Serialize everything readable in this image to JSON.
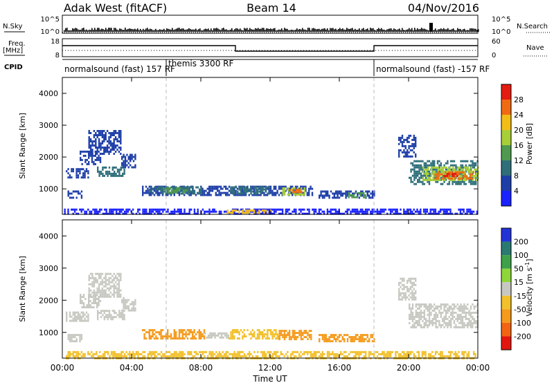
{
  "header": {
    "radar": "Adak West (fitACF)",
    "beam": "Beam 14",
    "date": "04/Nov/2016"
  },
  "summary_panel": {
    "left_labels": {
      "nsky": "N.Sky",
      "freq_top": "Freq.",
      "freq_unit": "[MHz]",
      "cpid": "CPID"
    },
    "right_labels": {
      "nsearch": "N.Search",
      "nave": "Nave"
    },
    "nsky_ticks": [
      "10^5",
      "10^0"
    ],
    "nsearch_ticks": [
      "10^5",
      "10^0"
    ],
    "freq_ticks": [
      18,
      8
    ],
    "nave_ticks": [
      60,
      0
    ],
    "freq_steps": [
      {
        "start_hour": 0,
        "end_hour": 10,
        "level": "high"
      },
      {
        "start_hour": 10,
        "end_hour": 18,
        "level": "low"
      },
      {
        "start_hour": 18,
        "end_hour": 24,
        "level": "high"
      }
    ],
    "cpid": [
      {
        "start_hour": 0,
        "label": "normalsound (fast) 157 RF"
      },
      {
        "start_hour": 6,
        "label": "themis 3300 RF"
      },
      {
        "start_hour": 18,
        "label": "normalsound (fast) -157 RF"
      }
    ]
  },
  "chart_data": [
    {
      "type": "heatmap",
      "parameter": "Power",
      "xlabel": "",
      "ylabel": "Slant Range [km]",
      "xlim_hours": [
        0,
        24
      ],
      "ylim": [
        200,
        4500
      ],
      "yticks": [
        1000,
        2000,
        3000,
        4000
      ],
      "colorbar": {
        "label": "Power [dB]",
        "ticks": [
          4,
          8,
          12,
          16,
          20,
          24,
          28
        ],
        "bins": [
          {
            "min": 0,
            "max": 4,
            "color": "#1a22ff"
          },
          {
            "min": 4,
            "max": 8,
            "color": "#1f3fa8"
          },
          {
            "min": 8,
            "max": 12,
            "color": "#2f6f7a"
          },
          {
            "min": 12,
            "max": 16,
            "color": "#4f9a50"
          },
          {
            "min": 16,
            "max": 20,
            "color": "#a8cf38"
          },
          {
            "min": 20,
            "max": 24,
            "color": "#f3bd18"
          },
          {
            "min": 24,
            "max": 28,
            "color": "#f06a12"
          },
          {
            "min": 28,
            "max": 32,
            "color": "#e41b10"
          }
        ]
      },
      "regions": [
        {
          "t0": 0.1,
          "t1": 24,
          "r0": 200,
          "r1": 380,
          "bin": 0
        },
        {
          "t0": 0.2,
          "t1": 1.5,
          "r0": 1380,
          "r1": 1650,
          "bin": 1
        },
        {
          "t0": 0.3,
          "t1": 1.1,
          "r0": 750,
          "r1": 950,
          "bin": 1
        },
        {
          "t0": 1.0,
          "t1": 2.2,
          "r0": 1800,
          "r1": 2200,
          "bin": 1
        },
        {
          "t0": 1.5,
          "t1": 3.4,
          "r0": 2100,
          "r1": 2850,
          "bin": 1
        },
        {
          "t0": 2.0,
          "t1": 3.6,
          "r0": 1380,
          "r1": 1700,
          "bin": 2
        },
        {
          "t0": 3.4,
          "t1": 4.2,
          "r0": 1700,
          "r1": 2100,
          "bin": 1
        },
        {
          "t0": 4.6,
          "t1": 14.4,
          "r0": 780,
          "r1": 1100,
          "bin": 1
        },
        {
          "t0": 5.0,
          "t1": 8.0,
          "r0": 820,
          "r1": 1080,
          "bin": 2
        },
        {
          "t0": 5.8,
          "t1": 7.2,
          "r0": 900,
          "r1": 1050,
          "bin": 3
        },
        {
          "t0": 9.7,
          "t1": 12.0,
          "r0": 820,
          "r1": 1080,
          "bin": 2
        },
        {
          "t0": 12.7,
          "t1": 14.0,
          "r0": 850,
          "r1": 1050,
          "bin": 4
        },
        {
          "t0": 13.0,
          "t1": 13.8,
          "r0": 900,
          "r1": 1000,
          "bin": 6
        },
        {
          "t0": 14.8,
          "t1": 18.0,
          "r0": 700,
          "r1": 950,
          "bin": 1
        },
        {
          "t0": 16.5,
          "t1": 17.5,
          "r0": 750,
          "r1": 900,
          "bin": 3
        },
        {
          "t0": 9.5,
          "t1": 12.0,
          "r0": 250,
          "r1": 350,
          "bin": 5
        },
        {
          "t0": 19.4,
          "t1": 20.4,
          "r0": 2000,
          "r1": 2700,
          "bin": 1
        },
        {
          "t0": 20.0,
          "t1": 24.0,
          "r0": 1150,
          "r1": 1900,
          "bin": 2
        },
        {
          "t0": 20.8,
          "t1": 24.0,
          "r0": 1300,
          "r1": 1700,
          "bin": 4
        },
        {
          "t0": 21.5,
          "t1": 23.8,
          "r0": 1350,
          "r1": 1550,
          "bin": 6
        },
        {
          "t0": 22.0,
          "t1": 23.0,
          "r0": 1380,
          "r1": 1500,
          "bin": 7
        }
      ]
    },
    {
      "type": "heatmap",
      "parameter": "Velocity",
      "xlabel": "Time UT",
      "ylabel": "Slant Range [km]",
      "xlim_hours": [
        0,
        24
      ],
      "ylim": [
        200,
        4500
      ],
      "yticks": [
        1000,
        2000,
        3000,
        4000
      ],
      "xticks": [
        "00:00",
        "04:00",
        "08:00",
        "12:00",
        "16:00",
        "20:00",
        "00:00"
      ],
      "colorbar": {
        "label": "Velocity [m s^-1]",
        "ticks": [
          "200",
          "100",
          "50",
          "15",
          "-15",
          "-50",
          "-100",
          "-200"
        ],
        "bins": [
          {
            "color": "#2433d6"
          },
          {
            "color": "#2a7a72"
          },
          {
            "color": "#3fa04a"
          },
          {
            "color": "#8ed63a"
          },
          {
            "color": "#c8c8c2"
          },
          {
            "color": "#f2c02a"
          },
          {
            "color": "#f59a1c"
          },
          {
            "color": "#f26414"
          },
          {
            "color": "#e3160f"
          }
        ]
      },
      "regions": [
        {
          "t0": 0.2,
          "t1": 24,
          "r0": 200,
          "r1": 420,
          "bin": 5
        },
        {
          "t0": 0.2,
          "t1": 1.5,
          "r0": 1380,
          "r1": 1650,
          "bin": 4
        },
        {
          "t0": 0.3,
          "t1": 1.1,
          "r0": 750,
          "r1": 950,
          "bin": 4
        },
        {
          "t0": 1.0,
          "t1": 2.2,
          "r0": 1800,
          "r1": 2200,
          "bin": 4
        },
        {
          "t0": 1.5,
          "t1": 3.4,
          "r0": 2100,
          "r1": 2850,
          "bin": 4
        },
        {
          "t0": 2.0,
          "t1": 3.6,
          "r0": 1380,
          "r1": 1700,
          "bin": 4
        },
        {
          "t0": 3.4,
          "t1": 4.2,
          "r0": 1700,
          "r1": 2100,
          "bin": 4
        },
        {
          "t0": 4.6,
          "t1": 8.2,
          "r0": 780,
          "r1": 1100,
          "bin": 6
        },
        {
          "t0": 8.2,
          "t1": 9.6,
          "r0": 820,
          "r1": 1000,
          "bin": 4
        },
        {
          "t0": 9.6,
          "t1": 12.5,
          "r0": 800,
          "r1": 1100,
          "bin": 5
        },
        {
          "t0": 12.5,
          "t1": 14.4,
          "r0": 820,
          "r1": 1080,
          "bin": 6
        },
        {
          "t0": 14.8,
          "t1": 18.0,
          "r0": 700,
          "r1": 950,
          "bin": 6
        },
        {
          "t0": 19.4,
          "t1": 20.4,
          "r0": 2000,
          "r1": 2700,
          "bin": 4
        },
        {
          "t0": 20.0,
          "t1": 24.0,
          "r0": 1150,
          "r1": 1900,
          "bin": 4
        }
      ]
    }
  ]
}
